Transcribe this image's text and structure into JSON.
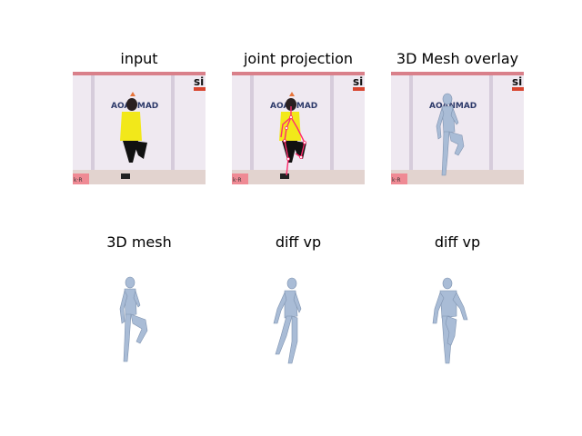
{
  "panels": [
    {
      "title": "input",
      "kind": "photo"
    },
    {
      "title": "joint projection",
      "kind": "photo-joints"
    },
    {
      "title": "3D Mesh overlay",
      "kind": "photo-mesh"
    },
    {
      "title": "3D mesh",
      "kind": "mesh"
    },
    {
      "title": "diff vp",
      "kind": "mesh"
    },
    {
      "title": "diff vp",
      "kind": "mesh"
    }
  ],
  "photo_text": {
    "banner": "AOANMAD",
    "corner": "si",
    "bottom_left": "k·R"
  },
  "colors": {
    "background": "#ffffff",
    "studio_wall": "#ece5ef",
    "banner_bar": "#d9808a",
    "jacket": "#f2e81a",
    "pants": "#111111",
    "mesh": "#a9bcd6",
    "joints": "#ff2c6e"
  }
}
